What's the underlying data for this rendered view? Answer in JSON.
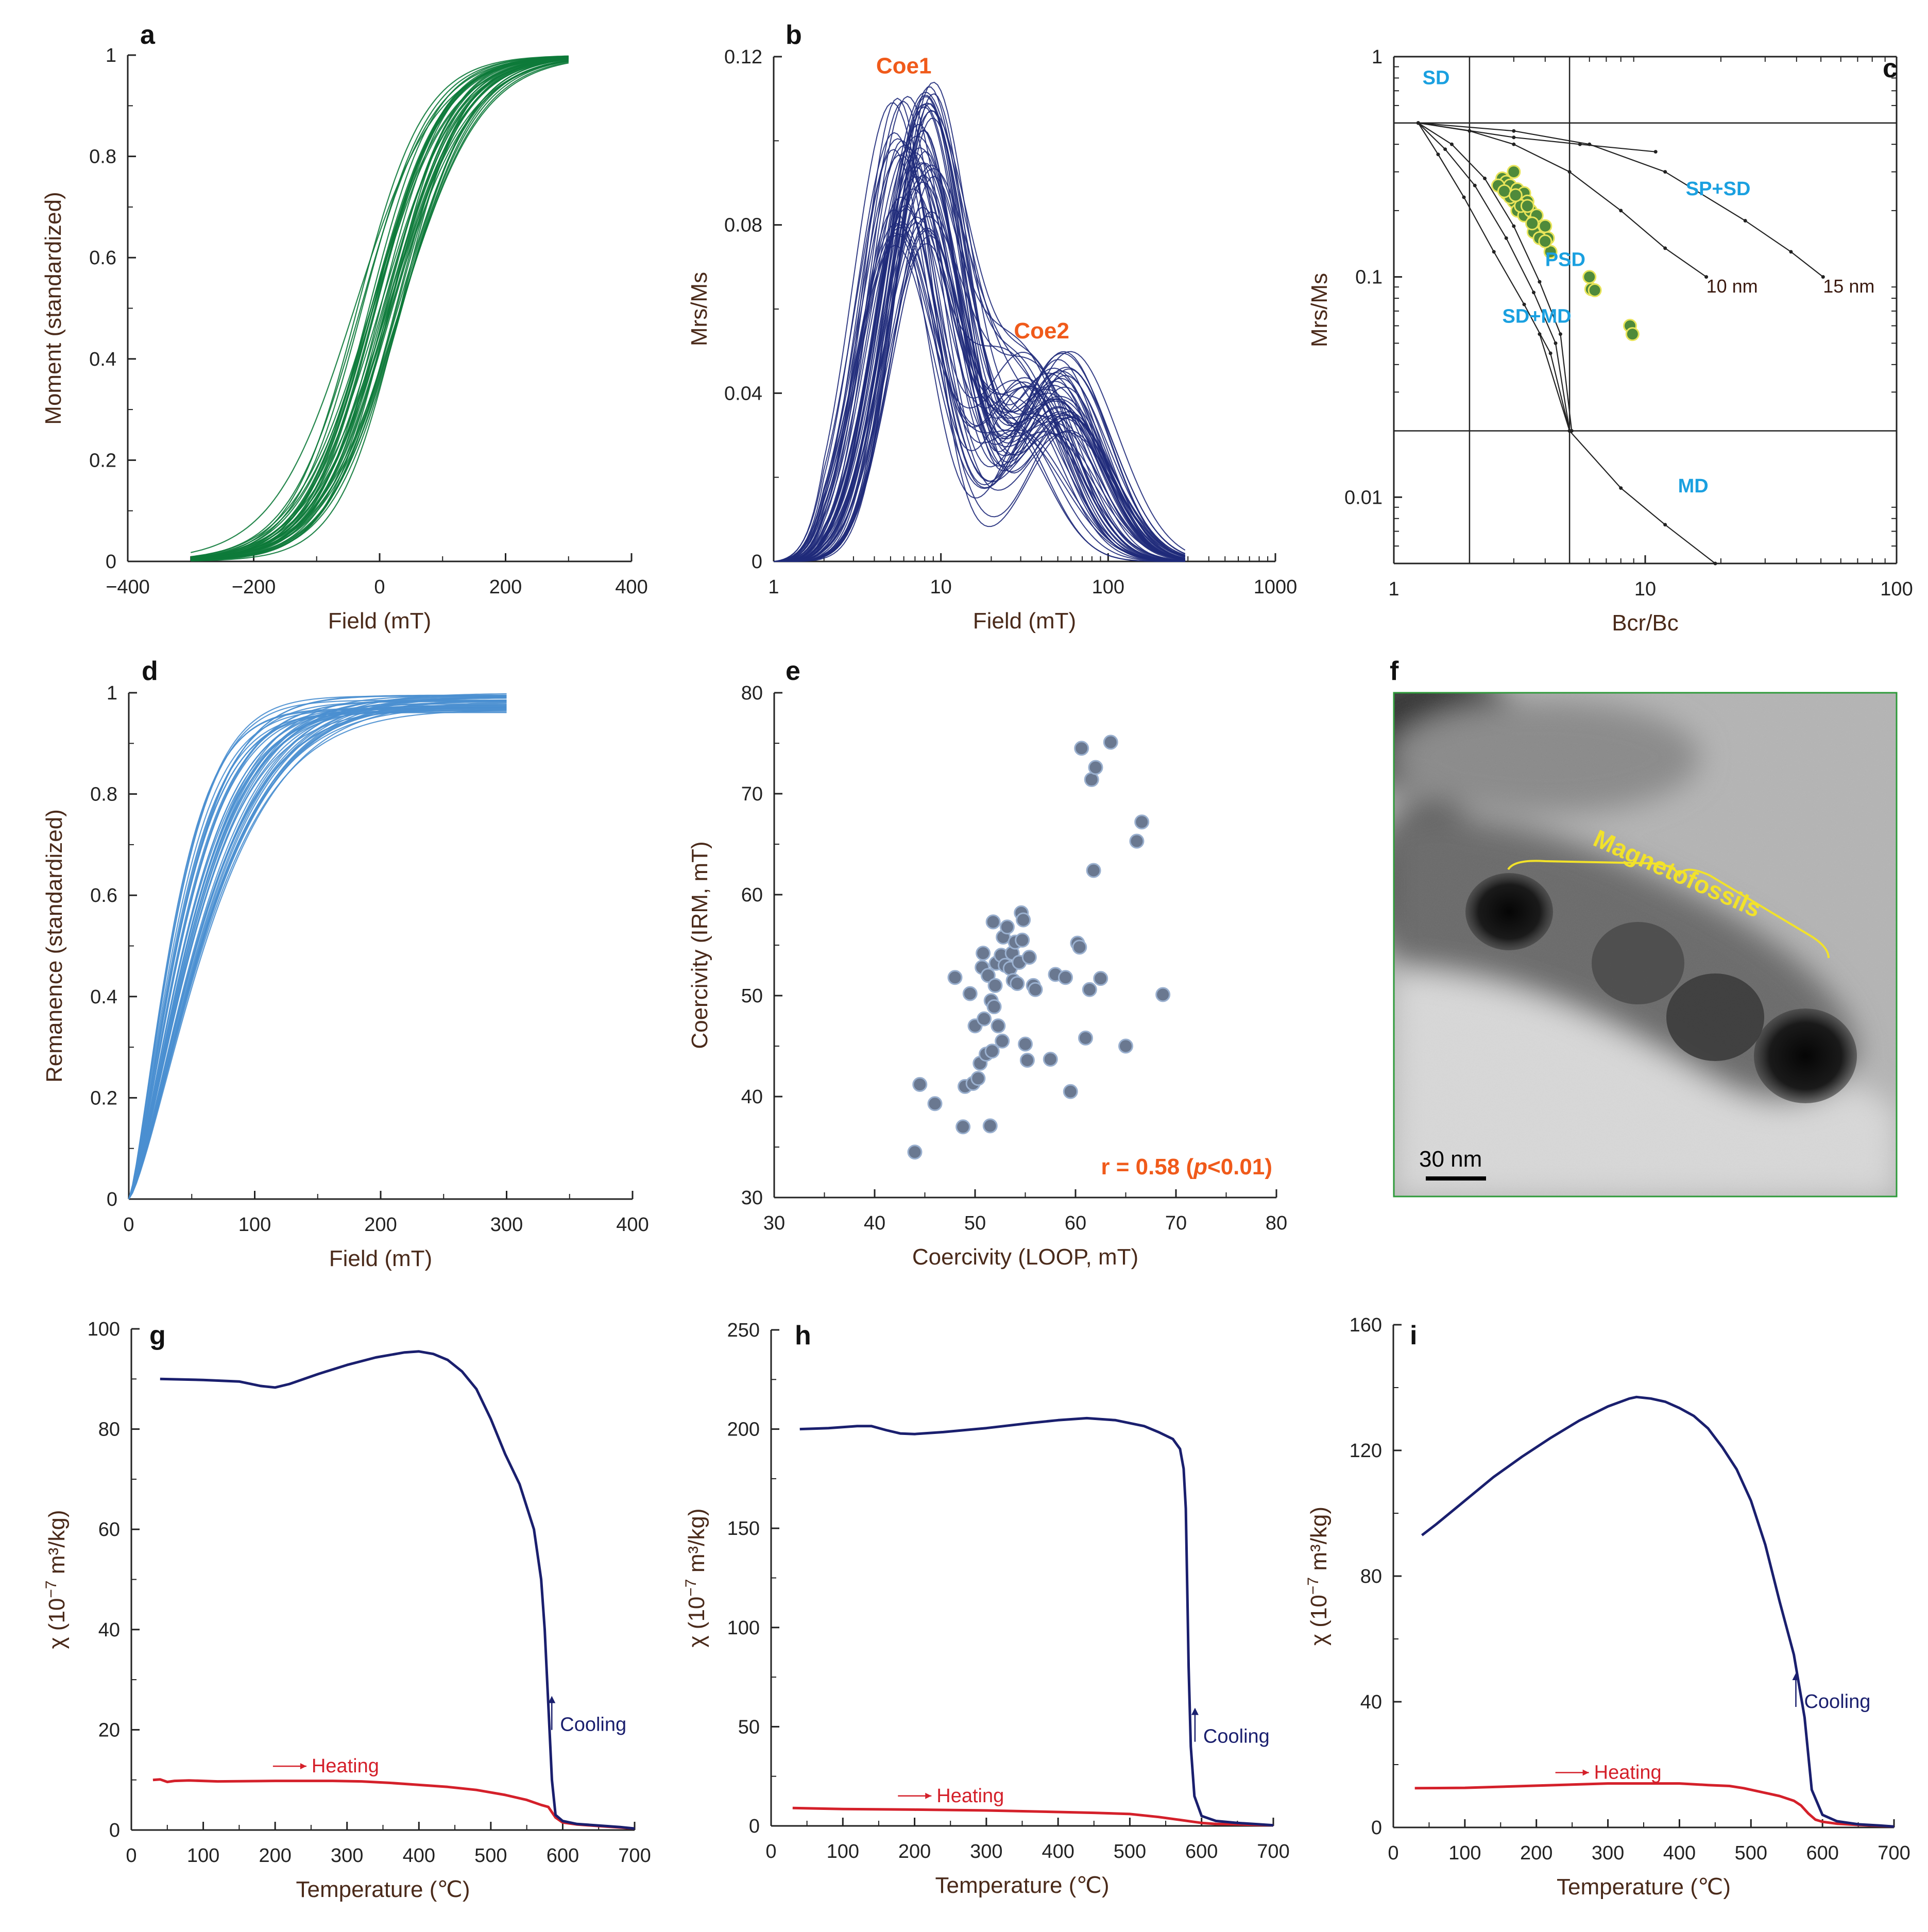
{
  "chart_data": [
    {
      "id": "a",
      "type": "line",
      "panel_label": "a",
      "xlabel": "Field (mT)",
      "ylabel": "Moment (standardized)",
      "xlim": [
        -400,
        400
      ],
      "ylim": [
        0,
        1
      ],
      "xticks": [
        "-400",
        "-200",
        "0",
        "200",
        "400"
      ],
      "yticks": [
        "0",
        "0.2",
        "0.4",
        "0.6",
        "0.8",
        "1"
      ],
      "color": "#0d7a3a",
      "description_curves": {
        "count": 40,
        "center_range": [
          -40,
          40
        ],
        "width_range": [
          48,
          66
        ],
        "x_extent": [
          -300,
          300
        ]
      }
    },
    {
      "id": "b",
      "type": "line",
      "panel_label": "b",
      "xlabel": "Field (mT)",
      "ylabel": "Mrs/Ms",
      "xscale": "log",
      "xlim": [
        1,
        1000
      ],
      "ylim": [
        0,
        0.12
      ],
      "xticks": [
        "1",
        "10",
        "100",
        "1000"
      ],
      "yticks": [
        "0",
        "0.04",
        "0.08",
        "0.12"
      ],
      "color": "#1f2a7a",
      "annotations": [
        {
          "text": "Coe1",
          "x": 6,
          "y": 0.116
        },
        {
          "text": "Coe2",
          "x": 40,
          "y": 0.053
        }
      ],
      "description_curves": {
        "count": 60,
        "peak1_field_range": [
          5,
          9
        ],
        "peak1_height_range": [
          0.075,
          0.112
        ],
        "peak2_field_range": [
          25,
          60
        ],
        "peak2_height_range": [
          0.03,
          0.05
        ],
        "x_extent": [
          1,
          300
        ]
      }
    },
    {
      "id": "c",
      "type": "scatter",
      "panel_label": "c",
      "xlabel": "Bcr/Bc",
      "ylabel": "Mrs/Ms",
      "xscale": "log",
      "yscale": "log",
      "xlim": [
        1,
        100
      ],
      "ylim": [
        0.005,
        1
      ],
      "xticks": [
        "1",
        "10",
        "100"
      ],
      "yticks": [
        "0.01",
        "0.1",
        "1"
      ],
      "reference_lines": {
        "x": [
          2,
          5
        ],
        "y": [
          0.5,
          0.02
        ]
      },
      "regions": [
        {
          "text": "SD",
          "x": 1.3,
          "y": 0.75
        },
        {
          "text": "PSD",
          "x": 4.0,
          "y": 0.112
        },
        {
          "text": "SD+MD",
          "x": 2.7,
          "y": 0.062
        },
        {
          "text": "SP+SD",
          "x": 14.5,
          "y": 0.235
        },
        {
          "text": "MD",
          "x": 13.5,
          "y": 0.0105
        }
      ],
      "curve_labels": [
        {
          "text": "10 nm",
          "x": 17.5,
          "y": 0.085
        },
        {
          "text": "15 nm",
          "x": 51,
          "y": 0.085
        }
      ],
      "points": [
        [
          2.7,
          0.28
        ],
        [
          2.8,
          0.27
        ],
        [
          2.9,
          0.26
        ],
        [
          3.0,
          0.3
        ],
        [
          3.1,
          0.25
        ],
        [
          3.2,
          0.23
        ],
        [
          3.3,
          0.24
        ],
        [
          3.4,
          0.22
        ],
        [
          3.0,
          0.22
        ],
        [
          2.8,
          0.24
        ],
        [
          3.1,
          0.2
        ],
        [
          3.3,
          0.19
        ],
        [
          3.5,
          0.2
        ],
        [
          3.6,
          0.18
        ],
        [
          3.8,
          0.17
        ],
        [
          3.9,
          0.16
        ],
        [
          4.0,
          0.17
        ],
        [
          3.7,
          0.19
        ],
        [
          3.6,
          0.16
        ],
        [
          4.1,
          0.15
        ],
        [
          4.2,
          0.13
        ],
        [
          2.6,
          0.26
        ],
        [
          2.9,
          0.23
        ],
        [
          3.2,
          0.21
        ],
        [
          3.4,
          0.21
        ],
        [
          3.8,
          0.15
        ],
        [
          4.0,
          0.145
        ],
        [
          2.75,
          0.245
        ],
        [
          3.05,
          0.235
        ],
        [
          3.55,
          0.175
        ],
        [
          6.0,
          0.1
        ],
        [
          6.1,
          0.088
        ],
        [
          6.3,
          0.087
        ],
        [
          8.7,
          0.06
        ],
        [
          8.9,
          0.055
        ]
      ]
    },
    {
      "id": "d",
      "type": "line",
      "panel_label": "d",
      "xlabel": "Field (mT)",
      "ylabel": "Remanence (standardized)",
      "xlim": [
        0,
        400
      ],
      "ylim": [
        0,
        1
      ],
      "xticks": [
        "0",
        "100",
        "200",
        "300",
        "400"
      ],
      "yticks": [
        "0",
        "0.2",
        "0.4",
        "0.6",
        "0.8",
        "1"
      ],
      "color": "#4a8fd0",
      "description_curves": {
        "count": 45,
        "scale_range": [
          40,
          80
        ],
        "x_extent": [
          0,
          300
        ]
      }
    },
    {
      "id": "e",
      "type": "scatter",
      "panel_label": "e",
      "xlabel": "Coercivity (LOOP, mT)",
      "ylabel": "Coercivity (IRM, mT)",
      "xlim": [
        30,
        80
      ],
      "ylim": [
        30,
        80
      ],
      "xticks": [
        "30",
        "40",
        "50",
        "60",
        "70",
        "80"
      ],
      "yticks": [
        "30",
        "40",
        "50",
        "60",
        "70",
        "80"
      ],
      "annotation": {
        "prefix": "r = 0.58 (",
        "italic": "p",
        "suffix": "<0.01)"
      },
      "points": [
        [
          44.0,
          34.5
        ],
        [
          44.5,
          41.2
        ],
        [
          46.0,
          39.3
        ],
        [
          48.0,
          51.8
        ],
        [
          48.8,
          37.0
        ],
        [
          49.0,
          41.0
        ],
        [
          49.5,
          50.2
        ],
        [
          49.8,
          41.3
        ],
        [
          50.0,
          47.0
        ],
        [
          50.3,
          41.8
        ],
        [
          50.5,
          43.3
        ],
        [
          50.7,
          52.8
        ],
        [
          50.8,
          54.2
        ],
        [
          50.9,
          47.7
        ],
        [
          51.1,
          44.2
        ],
        [
          51.3,
          52.0
        ],
        [
          51.5,
          37.1
        ],
        [
          51.6,
          49.5
        ],
        [
          51.7,
          44.5
        ],
        [
          51.8,
          57.3
        ],
        [
          51.9,
          48.9
        ],
        [
          52.0,
          51.0
        ],
        [
          52.1,
          53.2
        ],
        [
          52.3,
          47.0
        ],
        [
          52.6,
          54.0
        ],
        [
          52.7,
          45.5
        ],
        [
          52.8,
          55.8
        ],
        [
          53.0,
          53.0
        ],
        [
          53.2,
          56.8
        ],
        [
          53.5,
          52.7
        ],
        [
          53.7,
          54.2
        ],
        [
          53.8,
          51.5
        ],
        [
          54.0,
          55.3
        ],
        [
          54.2,
          51.2
        ],
        [
          54.4,
          53.3
        ],
        [
          54.6,
          58.2
        ],
        [
          54.7,
          55.5
        ],
        [
          54.8,
          57.5
        ],
        [
          55.0,
          45.2
        ],
        [
          55.2,
          43.6
        ],
        [
          55.4,
          53.8
        ],
        [
          55.8,
          51.0
        ],
        [
          56.0,
          50.6
        ],
        [
          57.5,
          43.7
        ],
        [
          58.0,
          52.1
        ],
        [
          59.0,
          51.8
        ],
        [
          59.5,
          40.5
        ],
        [
          60.2,
          55.2
        ],
        [
          60.4,
          54.8
        ],
        [
          60.6,
          74.5
        ],
        [
          61.0,
          45.8
        ],
        [
          61.4,
          50.6
        ],
        [
          61.6,
          71.4
        ],
        [
          61.8,
          62.4
        ],
        [
          62.0,
          72.6
        ],
        [
          62.5,
          51.7
        ],
        [
          63.5,
          75.1
        ],
        [
          65.0,
          45.0
        ],
        [
          66.1,
          65.3
        ],
        [
          66.6,
          67.2
        ],
        [
          68.7,
          50.1
        ]
      ]
    },
    {
      "id": "f",
      "type": "image",
      "panel_label": "f",
      "annotation": "Magnetofossils",
      "scale_bar": "30 nm"
    },
    {
      "id": "g",
      "type": "line",
      "panel_label": "g",
      "xlabel": "Temperature (℃)",
      "ylabel_parts": [
        "χ (10",
        "−7",
        " m³/kg)"
      ],
      "xlim": [
        0,
        700
      ],
      "ylim": [
        0,
        100
      ],
      "xticks": [
        "0",
        "100",
        "200",
        "300",
        "400",
        "500",
        "600",
        "700"
      ],
      "yticks": [
        "0",
        "20",
        "40",
        "60",
        "80",
        "100"
      ],
      "series": [
        {
          "name": "Heating",
          "color": "#d4202a",
          "x": [
            30,
            40,
            50,
            60,
            80,
            120,
            200,
            280,
            320,
            360,
            400,
            440,
            480,
            520,
            550,
            570,
            580,
            590,
            600,
            620,
            650,
            680,
            700
          ],
          "y": [
            10.0,
            10.1,
            9.6,
            9.8,
            9.9,
            9.7,
            9.8,
            9.8,
            9.7,
            9.4,
            9.0,
            8.6,
            8.0,
            7.0,
            6.0,
            5.0,
            4.6,
            2.5,
            1.5,
            1.1,
            0.8,
            0.5,
            0.3
          ]
        },
        {
          "name": "Cooling",
          "color": "#1a1f6e",
          "x": [
            40,
            100,
            150,
            180,
            200,
            220,
            260,
            300,
            340,
            380,
            400,
            420,
            440,
            460,
            480,
            500,
            520,
            540,
            560,
            570,
            575,
            580,
            585,
            590,
            600,
            620,
            650,
            680,
            700
          ],
          "y": [
            90,
            89.8,
            89.5,
            88.6,
            88.3,
            89,
            91,
            92.8,
            94.3,
            95.3,
            95.5,
            95,
            93.8,
            91.5,
            88,
            82,
            75,
            69,
            60,
            50,
            40,
            25,
            10,
            3,
            1.8,
            1.2,
            0.9,
            0.6,
            0.3
          ]
        }
      ],
      "labels": [
        {
          "text": "Heating",
          "x": 265,
          "y": 11.5
        },
        {
          "text": "Cooling",
          "x": 592,
          "y": 21
        }
      ]
    },
    {
      "id": "h",
      "type": "line",
      "panel_label": "h",
      "xlabel": "Temperature (℃)",
      "ylabel_parts": [
        "χ (10",
        "−7",
        " m³/kg)"
      ],
      "xlim": [
        0,
        700
      ],
      "ylim": [
        0,
        250
      ],
      "xticks": [
        "0",
        "100",
        "200",
        "300",
        "400",
        "500",
        "600",
        "700"
      ],
      "yticks": [
        "0",
        "50",
        "100",
        "150",
        "200",
        "250"
      ],
      "series": [
        {
          "name": "Heating",
          "color": "#d4202a",
          "x": [
            30,
            60,
            100,
            200,
            300,
            400,
            450,
            500,
            540,
            570,
            590,
            600,
            620,
            650,
            680,
            700
          ],
          "y": [
            9,
            8.8,
            8.5,
            8.2,
            7.8,
            7.0,
            6.6,
            6.0,
            4.5,
            3.0,
            2.0,
            1.5,
            1.0,
            0.8,
            0.5,
            0.3
          ]
        },
        {
          "name": "Cooling",
          "color": "#1a1f6e",
          "x": [
            40,
            80,
            120,
            140,
            160,
            180,
            200,
            240,
            300,
            360,
            400,
            440,
            480,
            520,
            540,
            560,
            570,
            575,
            578,
            580,
            582,
            585,
            590,
            600,
            620,
            650,
            680,
            700
          ],
          "y": [
            200,
            200.5,
            201.5,
            201.5,
            199.5,
            197.8,
            197.5,
            198.5,
            200.5,
            203,
            204.5,
            205.5,
            204.5,
            201.5,
            198.5,
            195,
            190,
            180,
            160,
            120,
            80,
            40,
            15,
            5,
            2.5,
            1.5,
            0.8,
            0.3
          ]
        }
      ],
      "labels": [
        {
          "text": "Heating",
          "x": 245,
          "y": 12
        },
        {
          "text": "Cooling",
          "x": 598,
          "y": 45
        }
      ]
    },
    {
      "id": "i",
      "type": "line",
      "panel_label": "i",
      "xlabel": "Temperature (℃)",
      "ylabel_parts": [
        "χ (10",
        "−7",
        " m³/kg)"
      ],
      "xlim": [
        0,
        700
      ],
      "ylim": [
        0,
        160
      ],
      "xticks": [
        "0",
        "100",
        "200",
        "300",
        "400",
        "500",
        "600",
        "700"
      ],
      "yticks": [
        "0",
        "40",
        "80",
        "120",
        "160"
      ],
      "series": [
        {
          "name": "Heating",
          "color": "#d4202a",
          "x": [
            30,
            100,
            200,
            300,
            350,
            400,
            440,
            470,
            490,
            520,
            540,
            560,
            570,
            580,
            590,
            600,
            620,
            650,
            680,
            700
          ],
          "y": [
            12.5,
            12.6,
            13.3,
            14,
            14,
            14,
            13.5,
            13.2,
            12.5,
            11,
            10,
            8.5,
            7,
            4.5,
            2.5,
            1.8,
            1.2,
            0.8,
            0.5,
            0.3
          ]
        },
        {
          "name": "Cooling",
          "color": "#1a1f6e",
          "x": [
            40,
            60,
            100,
            140,
            180,
            220,
            260,
            300,
            330,
            340,
            360,
            380,
            400,
            420,
            440,
            460,
            480,
            500,
            520,
            540,
            560,
            575,
            585,
            600,
            620,
            650,
            680,
            700
          ],
          "y": [
            93,
            96.5,
            104,
            111.5,
            118,
            124,
            129.5,
            134,
            136.5,
            137,
            136.5,
            135.5,
            133.5,
            131,
            127,
            121,
            114,
            104,
            90,
            72,
            55,
            35,
            12,
            4,
            2,
            1,
            0.6,
            0.3
          ]
        }
      ],
      "labels": [
        {
          "text": "Heating",
          "x": 295,
          "y": 15.5
        },
        {
          "text": "Cooling",
          "x": 570,
          "y": 40
        }
      ]
    }
  ]
}
